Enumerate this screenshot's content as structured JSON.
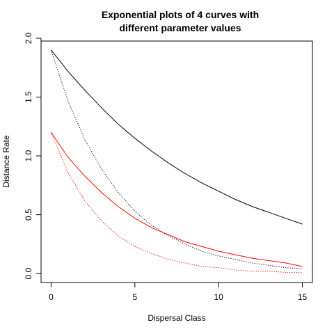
{
  "chart_data": {
    "type": "line",
    "title": [
      "Exponential plots of 4 curves with",
      "different parameter values"
    ],
    "xlabel": "Dispersal Class",
    "ylabel": "Distance Rate",
    "xlim": [
      -0.6,
      15.6
    ],
    "ylim": [
      -0.076,
      1.976
    ],
    "xticks": [
      0,
      5,
      10,
      15
    ],
    "xtick_labels": [
      "0",
      "5",
      "10",
      "15"
    ],
    "yticks": [
      0.0,
      0.5,
      1.0,
      1.5,
      2.0
    ],
    "ytick_labels": [
      "0.0",
      "0.5",
      "1.0",
      "1.5",
      "2.0"
    ],
    "grid": false,
    "legend": "none",
    "x": [
      0,
      1,
      2,
      3,
      4,
      5,
      6,
      7,
      8,
      9,
      10,
      11,
      12,
      13,
      14,
      15
    ],
    "series": [
      {
        "color": "#000000",
        "linestyle": "solid",
        "values": [
          1.9,
          1.72,
          1.56,
          1.41,
          1.27,
          1.15,
          1.04,
          0.94,
          0.85,
          0.77,
          0.7,
          0.63,
          0.57,
          0.52,
          0.47,
          0.42
        ]
      },
      {
        "color": "#000000",
        "linestyle": "dotted",
        "values": [
          1.9,
          1.47,
          1.14,
          0.89,
          0.69,
          0.53,
          0.41,
          0.32,
          0.25,
          0.19,
          0.15,
          0.12,
          0.09,
          0.07,
          0.05,
          0.04
        ]
      },
      {
        "color": "#ff0000",
        "linestyle": "solid",
        "values": [
          1.2,
          0.99,
          0.83,
          0.69,
          0.57,
          0.47,
          0.39,
          0.33,
          0.27,
          0.23,
          0.19,
          0.16,
          0.13,
          0.11,
          0.09,
          0.06
        ]
      },
      {
        "color": "#ff0000",
        "linestyle": "dotted",
        "values": [
          1.2,
          0.86,
          0.62,
          0.45,
          0.32,
          0.23,
          0.17,
          0.12,
          0.09,
          0.06,
          0.05,
          0.03,
          0.02,
          0.02,
          0.01,
          0.01
        ]
      }
    ]
  }
}
